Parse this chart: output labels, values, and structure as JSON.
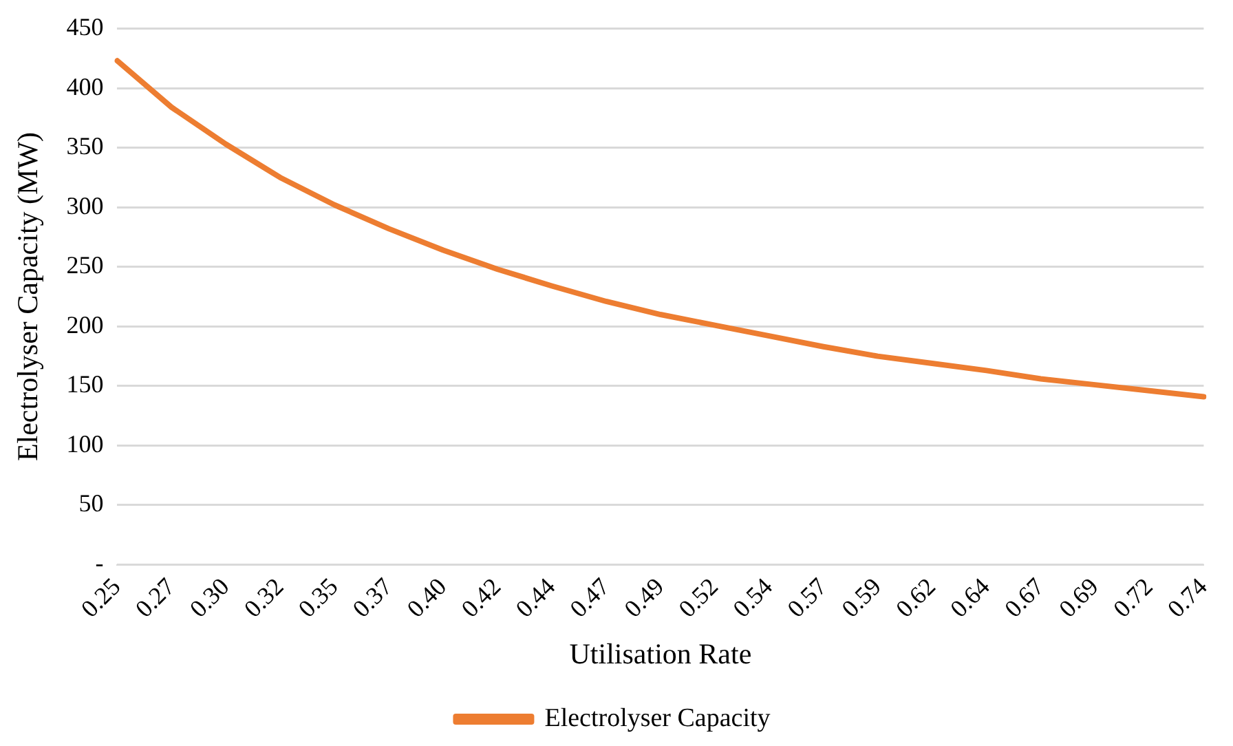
{
  "chart_data": {
    "type": "line",
    "xlabel": "Utilisation Rate",
    "ylabel": "Electrolyser Capacity (MW)",
    "categories": [
      "0.25",
      "0.27",
      "0.30",
      "0.32",
      "0.35",
      "0.37",
      "0.40",
      "0.42",
      "0.44",
      "0.47",
      "0.49",
      "0.52",
      "0.54",
      "0.57",
      "0.59",
      "0.62",
      "0.64",
      "0.67",
      "0.69",
      "0.72",
      "0.74"
    ],
    "series": [
      {
        "name": "Electrolyser Capacity",
        "color": "#ed7d31",
        "values": [
          423,
          384,
          353,
          325,
          302,
          282,
          264,
          248,
          234,
          221,
          210,
          201,
          192,
          183,
          175,
          169,
          163,
          156,
          151,
          146,
          141
        ]
      }
    ],
    "ylim": [
      0,
      450
    ],
    "yticks": [
      {
        "value": 0,
        "label": "-"
      },
      50,
      100,
      150,
      200,
      250,
      300,
      350,
      400,
      450
    ],
    "grid": "y",
    "legend": "bottom",
    "marker": "none",
    "line_style": "solid"
  }
}
